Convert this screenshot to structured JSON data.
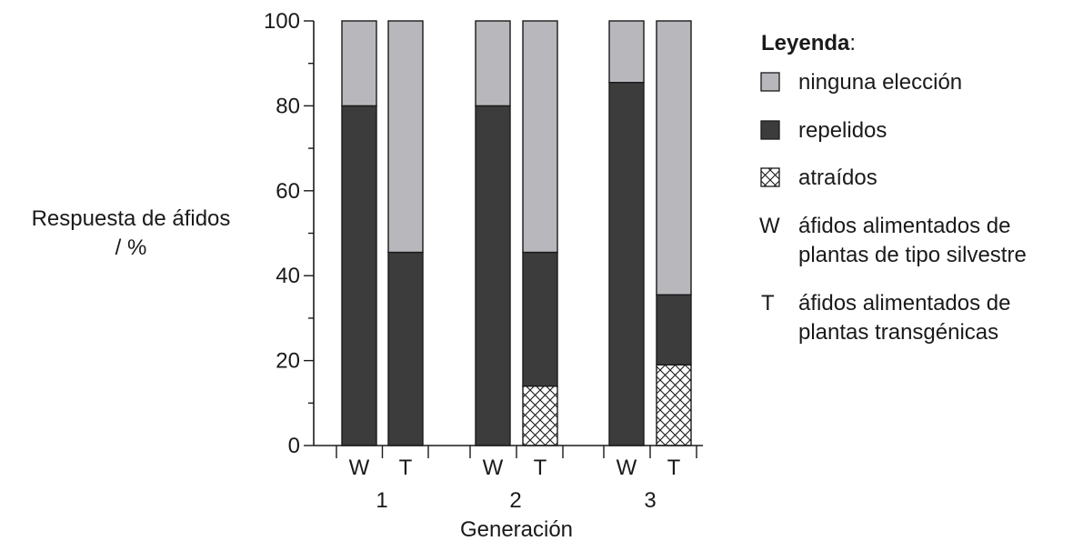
{
  "chart_data": {
    "type": "bar",
    "stacked": true,
    "title": "",
    "ylabel_line1": "Respuesta de áfidos",
    "ylabel_line2": "/ %",
    "xlabel": "Generación",
    "ylim": [
      0,
      100
    ],
    "yticks": [
      0,
      20,
      40,
      60,
      80,
      100
    ],
    "grid": false,
    "groups": [
      "1",
      "2",
      "3"
    ],
    "bar_labels": [
      "W",
      "T"
    ],
    "bars": [
      {
        "group": "1",
        "label": "W",
        "atraidos": 0,
        "repelidos": 80,
        "ninguna": 20
      },
      {
        "group": "1",
        "label": "T",
        "atraidos": 0,
        "repelidos": 45.5,
        "ninguna": 54.5
      },
      {
        "group": "2",
        "label": "W",
        "atraidos": 0,
        "repelidos": 80,
        "ninguna": 20
      },
      {
        "group": "2",
        "label": "T",
        "atraidos": 14,
        "repelidos": 31.5,
        "ninguna": 54.5
      },
      {
        "group": "3",
        "label": "W",
        "atraidos": 0,
        "repelidos": 85.5,
        "ninguna": 14.5
      },
      {
        "group": "3",
        "label": "T",
        "atraidos": 19,
        "repelidos": 16.5,
        "ninguna": 64.5
      }
    ],
    "series": [
      {
        "key": "ninguna",
        "name": "ninguna elección",
        "color": "#b8b8bc"
      },
      {
        "key": "repelidos",
        "name": "repelidos",
        "color": "#3c3c3c"
      },
      {
        "key": "atraidos",
        "name": "atraídos",
        "color": "#ffffff",
        "pattern": "crosshatch"
      }
    ],
    "legend": {
      "title_bold": "Leyenda",
      "title_suffix": ":",
      "position": "right",
      "notes": [
        {
          "letter": "W",
          "line1": "áfidos alimentados de",
          "line2": "plantas de tipo silvestre"
        },
        {
          "letter": "T",
          "line1": "áfidos alimentados de",
          "line2": "plantas transgénicas"
        }
      ]
    }
  }
}
